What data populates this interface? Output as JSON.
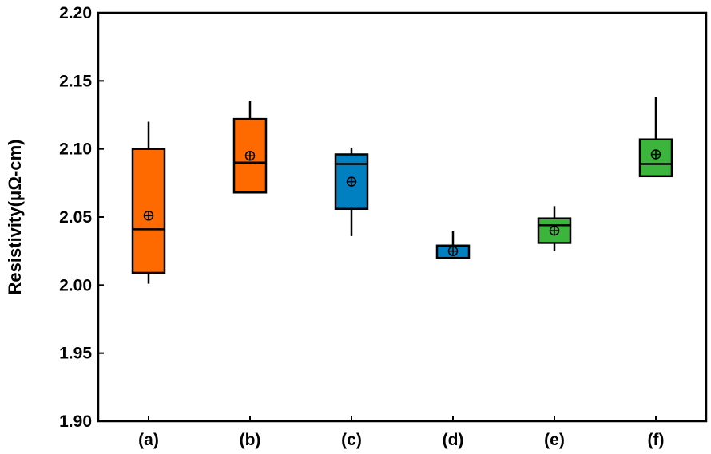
{
  "chart_data": {
    "type": "box",
    "title": "",
    "xlabel": "",
    "ylabel": "Resistivity(μΩ-cm)",
    "ylim": [
      1.9,
      2.2
    ],
    "yticks": [
      "1.90",
      "1.95",
      "2.00",
      "2.05",
      "2.10",
      "2.15",
      "2.20"
    ],
    "grid": false,
    "categories": [
      "(a)",
      "(b)",
      "(c)",
      "(d)",
      "(e)",
      "(f)"
    ],
    "boxes": [
      {
        "category": "(a)",
        "whisker_low": 2.001,
        "q1": 2.009,
        "median": 2.041,
        "q3": 2.1,
        "whisker_high": 2.12,
        "mean": 2.051,
        "color": "#FF6A00"
      },
      {
        "category": "(b)",
        "whisker_low": 2.068,
        "q1": 2.068,
        "median": 2.09,
        "q3": 2.122,
        "whisker_high": 2.135,
        "mean": 2.095,
        "color": "#FF6A00"
      },
      {
        "category": "(c)",
        "whisker_low": 2.036,
        "q1": 2.056,
        "median": 2.089,
        "q3": 2.096,
        "whisker_high": 2.101,
        "mean": 2.076,
        "color": "#0080C0"
      },
      {
        "category": "(d)",
        "whisker_low": 2.02,
        "q1": 2.02,
        "median": 2.029,
        "q3": 2.029,
        "whisker_high": 2.04,
        "mean": 2.025,
        "color": "#0080C0"
      },
      {
        "category": "(e)",
        "whisker_low": 2.025,
        "q1": 2.031,
        "median": 2.044,
        "q3": 2.049,
        "whisker_high": 2.058,
        "mean": 2.04,
        "color": "#3CB53C"
      },
      {
        "category": "(f)",
        "whisker_low": 2.08,
        "q1": 2.08,
        "median": 2.089,
        "q3": 2.107,
        "whisker_high": 2.138,
        "mean": 2.096,
        "color": "#3CB53C"
      }
    ]
  }
}
